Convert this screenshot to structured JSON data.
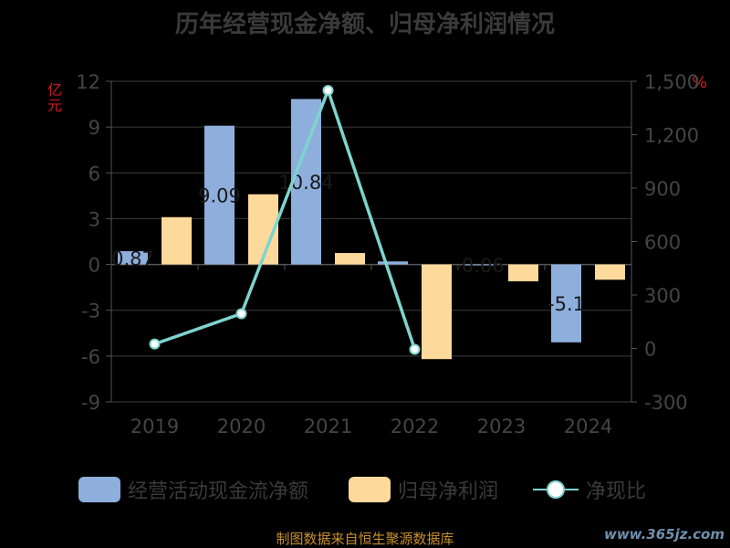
{
  "chart_data": {
    "type": "bar",
    "title": "历年经营现金净额、归母净利润情况",
    "categories": [
      "2019",
      "2020",
      "2021",
      "2022",
      "2023",
      "2024"
    ],
    "series": [
      {
        "name": "经营活动现金流净额",
        "kind": "bar",
        "axis": "left",
        "color": "#8eaedc",
        "values": [
          0.87,
          9.09,
          10.84,
          0.2,
          -0.06,
          -5.1
        ],
        "labels": [
          "0.87",
          "9.09",
          "10.84",
          "",
          "-0.06",
          "-5.1"
        ]
      },
      {
        "name": "归母净利润",
        "kind": "bar",
        "axis": "left",
        "color": "#fdd99b",
        "values": [
          3.1,
          4.6,
          0.75,
          -6.2,
          -1.1,
          -1.0
        ]
      },
      {
        "name": "净现比",
        "kind": "line",
        "axis": "right",
        "color": "#7fd3cf",
        "values": [
          25,
          195,
          1449,
          -5,
          null,
          null
        ]
      }
    ],
    "y_left": {
      "ticks": [
        12,
        9,
        6,
        3,
        0,
        -3,
        -6,
        -9
      ],
      "tick_labels": [
        "12",
        "9",
        "6",
        "3",
        "0",
        "-3",
        "-6",
        "-9"
      ],
      "ylim": [
        -9,
        12
      ],
      "unit": "亿元"
    },
    "y_right": {
      "ticks": [
        1500,
        1200,
        900,
        600,
        300,
        0,
        -300
      ],
      "tick_labels": [
        "1,500",
        "1,200",
        "900",
        "600",
        "300",
        "0",
        "-300"
      ],
      "ylim": [
        -300,
        1500
      ],
      "unit": "%"
    },
    "grid": true,
    "legend_position": "bottom"
  },
  "legend": {
    "item1": "经营活动现金流净额",
    "item2": "归母净利润",
    "item3": "净现比"
  },
  "unit_left": "亿元",
  "unit_right": "%",
  "footer": "制图数据来自恒生聚源数据库",
  "watermark": "www.365jz.com"
}
